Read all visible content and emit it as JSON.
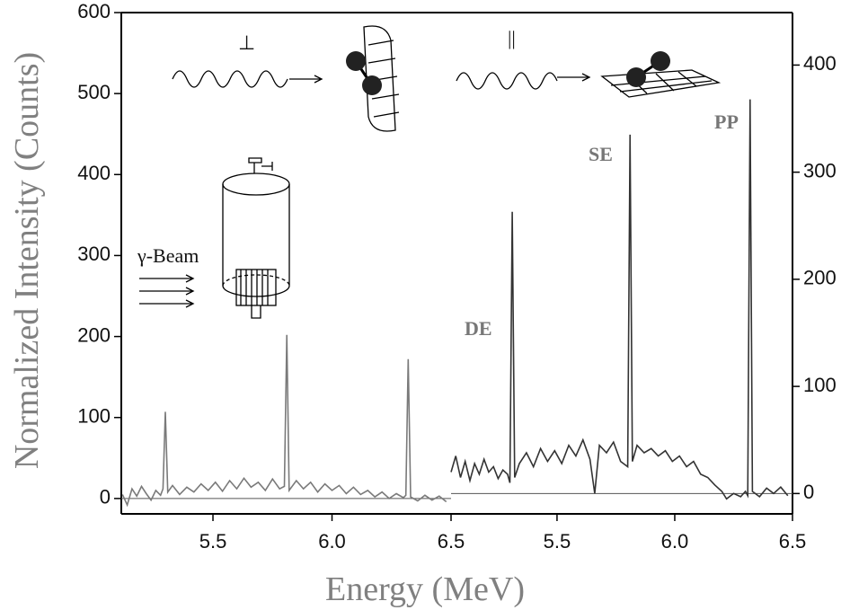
{
  "chart_data": [
    {
      "type": "line",
      "x_label": "Energy (MeV)",
      "y_label": "Normalized Intensity (Counts)",
      "color": "#7a7a7a",
      "xlim": [
        5.115,
        6.5
      ],
      "ylim": [
        -19,
        600
      ],
      "xticks": [
        5.5,
        {
          "value": 6.0,
          "label": "6.0"
        },
        6.5
      ],
      "yticks": [
        0,
        100,
        200,
        300,
        400,
        500,
        600
      ],
      "annotations": [
        "⊥",
        "γ-Beam"
      ],
      "x": [
        5.12,
        5.14,
        5.16,
        5.18,
        5.2,
        5.22,
        5.24,
        5.26,
        5.28,
        5.29,
        5.3,
        5.31,
        5.33,
        5.36,
        5.39,
        5.42,
        5.45,
        5.48,
        5.51,
        5.54,
        5.57,
        5.6,
        5.63,
        5.66,
        5.69,
        5.72,
        5.75,
        5.78,
        5.8,
        5.81,
        5.82,
        5.85,
        5.88,
        5.91,
        5.94,
        5.97,
        6.0,
        6.03,
        6.06,
        6.09,
        6.12,
        6.15,
        6.18,
        6.21,
        6.24,
        6.27,
        6.3,
        6.31,
        6.32,
        6.33,
        6.36,
        6.39,
        6.42,
        6.45,
        6.48
      ],
      "values": [
        5,
        -8,
        12,
        3,
        15,
        6,
        -2,
        10,
        4,
        12,
        107,
        8,
        16,
        5,
        14,
        8,
        18,
        10,
        20,
        9,
        22,
        12,
        25,
        14,
        20,
        10,
        24,
        12,
        15,
        202,
        10,
        22,
        12,
        20,
        8,
        18,
        10,
        16,
        6,
        14,
        5,
        10,
        2,
        8,
        0,
        6,
        1,
        4,
        172,
        2,
        -3,
        4,
        -2,
        3,
        -4
      ]
    },
    {
      "type": "line",
      "color": "#333333",
      "xlim": [
        5.05,
        6.5
      ],
      "ylim": [
        -19,
        449
      ],
      "xticks": [
        5.5,
        {
          "value": 6.0,
          "label": "6.0"
        },
        6.5
      ],
      "yticks": [
        0,
        100,
        200,
        300,
        400
      ],
      "annotations": [
        "||",
        "DE",
        "SE",
        "PP"
      ],
      "x": [
        5.05,
        5.07,
        5.09,
        5.11,
        5.13,
        5.15,
        5.17,
        5.19,
        5.21,
        5.23,
        5.25,
        5.27,
        5.29,
        5.3,
        5.31,
        5.32,
        5.34,
        5.37,
        5.4,
        5.43,
        5.46,
        5.49,
        5.52,
        5.55,
        5.58,
        5.61,
        5.64,
        5.66,
        5.68,
        5.71,
        5.74,
        5.77,
        5.8,
        5.81,
        5.82,
        5.84,
        5.87,
        5.9,
        5.93,
        5.96,
        5.99,
        6.02,
        6.05,
        6.08,
        6.11,
        6.14,
        6.17,
        6.2,
        6.22,
        6.25,
        6.28,
        6.3,
        6.31,
        6.32,
        6.33,
        6.36,
        6.39,
        6.42,
        6.45,
        6.48
      ],
      "values": [
        20,
        35,
        15,
        30,
        12,
        28,
        18,
        32,
        20,
        25,
        14,
        22,
        18,
        10,
        263,
        15,
        28,
        38,
        25,
        42,
        30,
        40,
        28,
        45,
        35,
        50,
        32,
        0,
        45,
        38,
        48,
        30,
        25,
        335,
        30,
        45,
        38,
        42,
        35,
        40,
        30,
        35,
        25,
        30,
        18,
        15,
        8,
        2,
        -5,
        0,
        -3,
        2,
        -2,
        368,
        2,
        -3,
        5,
        0,
        6,
        -2
      ]
    }
  ]
}
